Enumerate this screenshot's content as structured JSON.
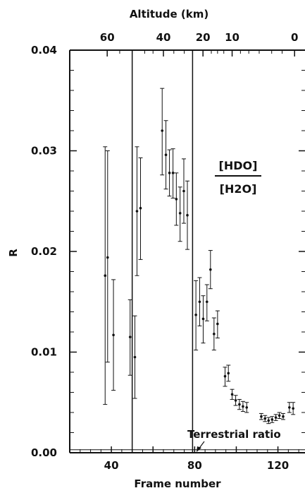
{
  "chart_data": {
    "type": "scatter",
    "xlabel": "Frame number",
    "ylabel": "R",
    "top_axis_label": "Altitude (km)",
    "xlim": [
      20,
      133
    ],
    "ylim": [
      0,
      0.04
    ],
    "x_ticks": [
      {
        "value": 40,
        "label": "40"
      },
      {
        "value": 80,
        "label": "80"
      },
      {
        "value": 120,
        "label": "120"
      }
    ],
    "y_ticks": [
      {
        "value": 0.0,
        "label": "0.00"
      },
      {
        "value": 0.01,
        "label": "0.01"
      },
      {
        "value": 0.02,
        "label": "0.02"
      },
      {
        "value": 0.03,
        "label": "0.03"
      },
      {
        "value": 0.04,
        "label": "0.04"
      }
    ],
    "top_ticks": [
      {
        "frame": 38,
        "label": "60"
      },
      {
        "frame": 65,
        "label": "40"
      },
      {
        "frame": 84,
        "label": "20"
      },
      {
        "frame": 98,
        "label": "10"
      },
      {
        "frame": 128,
        "label": "0"
      }
    ],
    "vertical_lines": [
      50,
      79
    ],
    "terrestrial_ratio_value": 0.0003,
    "terrestrial_ratio_label": "Terrestrial ratio",
    "fraction_numerator": "[HDO]",
    "fraction_denominator": "[H2O]",
    "grid": false,
    "points": [
      {
        "x": 37,
        "y": 0.0176,
        "lo": 0.0048,
        "hi": 0.0304
      },
      {
        "x": 38.2,
        "y": 0.0194,
        "lo": 0.009,
        "hi": 0.03
      },
      {
        "x": 41,
        "y": 0.0117,
        "lo": 0.0062,
        "hi": 0.0172
      },
      {
        "x": 49,
        "y": 0.0115,
        "lo": 0.0077,
        "hi": 0.0152
      },
      {
        "x": 51.3,
        "y": 0.0095,
        "lo": 0.0054,
        "hi": 0.0136
      },
      {
        "x": 52.3,
        "y": 0.024,
        "lo": 0.0176,
        "hi": 0.0304
      },
      {
        "x": 54,
        "y": 0.0243,
        "lo": 0.0192,
        "hi": 0.0293
      },
      {
        "x": 64.4,
        "y": 0.032,
        "lo": 0.0276,
        "hi": 0.0362
      },
      {
        "x": 66.2,
        "y": 0.0296,
        "lo": 0.0262,
        "hi": 0.033
      },
      {
        "x": 67.9,
        "y": 0.0278,
        "lo": 0.0255,
        "hi": 0.0301
      },
      {
        "x": 69.6,
        "y": 0.0278,
        "lo": 0.0253,
        "hi": 0.0302
      },
      {
        "x": 71.2,
        "y": 0.0252,
        "lo": 0.0226,
        "hi": 0.0278
      },
      {
        "x": 73,
        "y": 0.0238,
        "lo": 0.021,
        "hi": 0.0264
      },
      {
        "x": 74.8,
        "y": 0.026,
        "lo": 0.0228,
        "hi": 0.0292
      },
      {
        "x": 76.5,
        "y": 0.0236,
        "lo": 0.0202,
        "hi": 0.027
      },
      {
        "x": 80.6,
        "y": 0.0137,
        "lo": 0.0102,
        "hi": 0.0171
      },
      {
        "x": 82.4,
        "y": 0.015,
        "lo": 0.0126,
        "hi": 0.0174
      },
      {
        "x": 84.1,
        "y": 0.0133,
        "lo": 0.0109,
        "hi": 0.0156
      },
      {
        "x": 85.9,
        "y": 0.015,
        "lo": 0.0131,
        "hi": 0.0167
      },
      {
        "x": 87.6,
        "y": 0.0182,
        "lo": 0.0163,
        "hi": 0.0201
      },
      {
        "x": 89.3,
        "y": 0.0118,
        "lo": 0.0102,
        "hi": 0.0134
      },
      {
        "x": 91,
        "y": 0.0128,
        "lo": 0.0114,
        "hi": 0.0141
      },
      {
        "x": 94.6,
        "y": 0.0076,
        "lo": 0.0066,
        "hi": 0.0085
      },
      {
        "x": 96.2,
        "y": 0.0079,
        "lo": 0.0071,
        "hi": 0.0087
      },
      {
        "x": 98,
        "y": 0.0058,
        "lo": 0.0053,
        "hi": 0.0063
      },
      {
        "x": 99.7,
        "y": 0.0052,
        "lo": 0.0047,
        "hi": 0.0057
      },
      {
        "x": 101.5,
        "y": 0.0048,
        "lo": 0.0043,
        "hi": 0.0053
      },
      {
        "x": 103.2,
        "y": 0.0046,
        "lo": 0.0041,
        "hi": 0.0051
      },
      {
        "x": 105,
        "y": 0.0045,
        "lo": 0.004,
        "hi": 0.005
      },
      {
        "x": 112,
        "y": 0.0036,
        "lo": 0.0033,
        "hi": 0.0039
      },
      {
        "x": 113.8,
        "y": 0.0034,
        "lo": 0.0031,
        "hi": 0.0037
      },
      {
        "x": 115.5,
        "y": 0.0032,
        "lo": 0.0029,
        "hi": 0.0035
      },
      {
        "x": 117.2,
        "y": 0.0033,
        "lo": 0.003,
        "hi": 0.0036
      },
      {
        "x": 119,
        "y": 0.0035,
        "lo": 0.0032,
        "hi": 0.0038
      },
      {
        "x": 120.7,
        "y": 0.0037,
        "lo": 0.0034,
        "hi": 0.004
      },
      {
        "x": 122.5,
        "y": 0.0036,
        "lo": 0.0033,
        "hi": 0.0039
      },
      {
        "x": 125.5,
        "y": 0.0045,
        "lo": 0.004,
        "hi": 0.005
      },
      {
        "x": 127.3,
        "y": 0.0044,
        "lo": 0.0038,
        "hi": 0.005
      }
    ]
  }
}
